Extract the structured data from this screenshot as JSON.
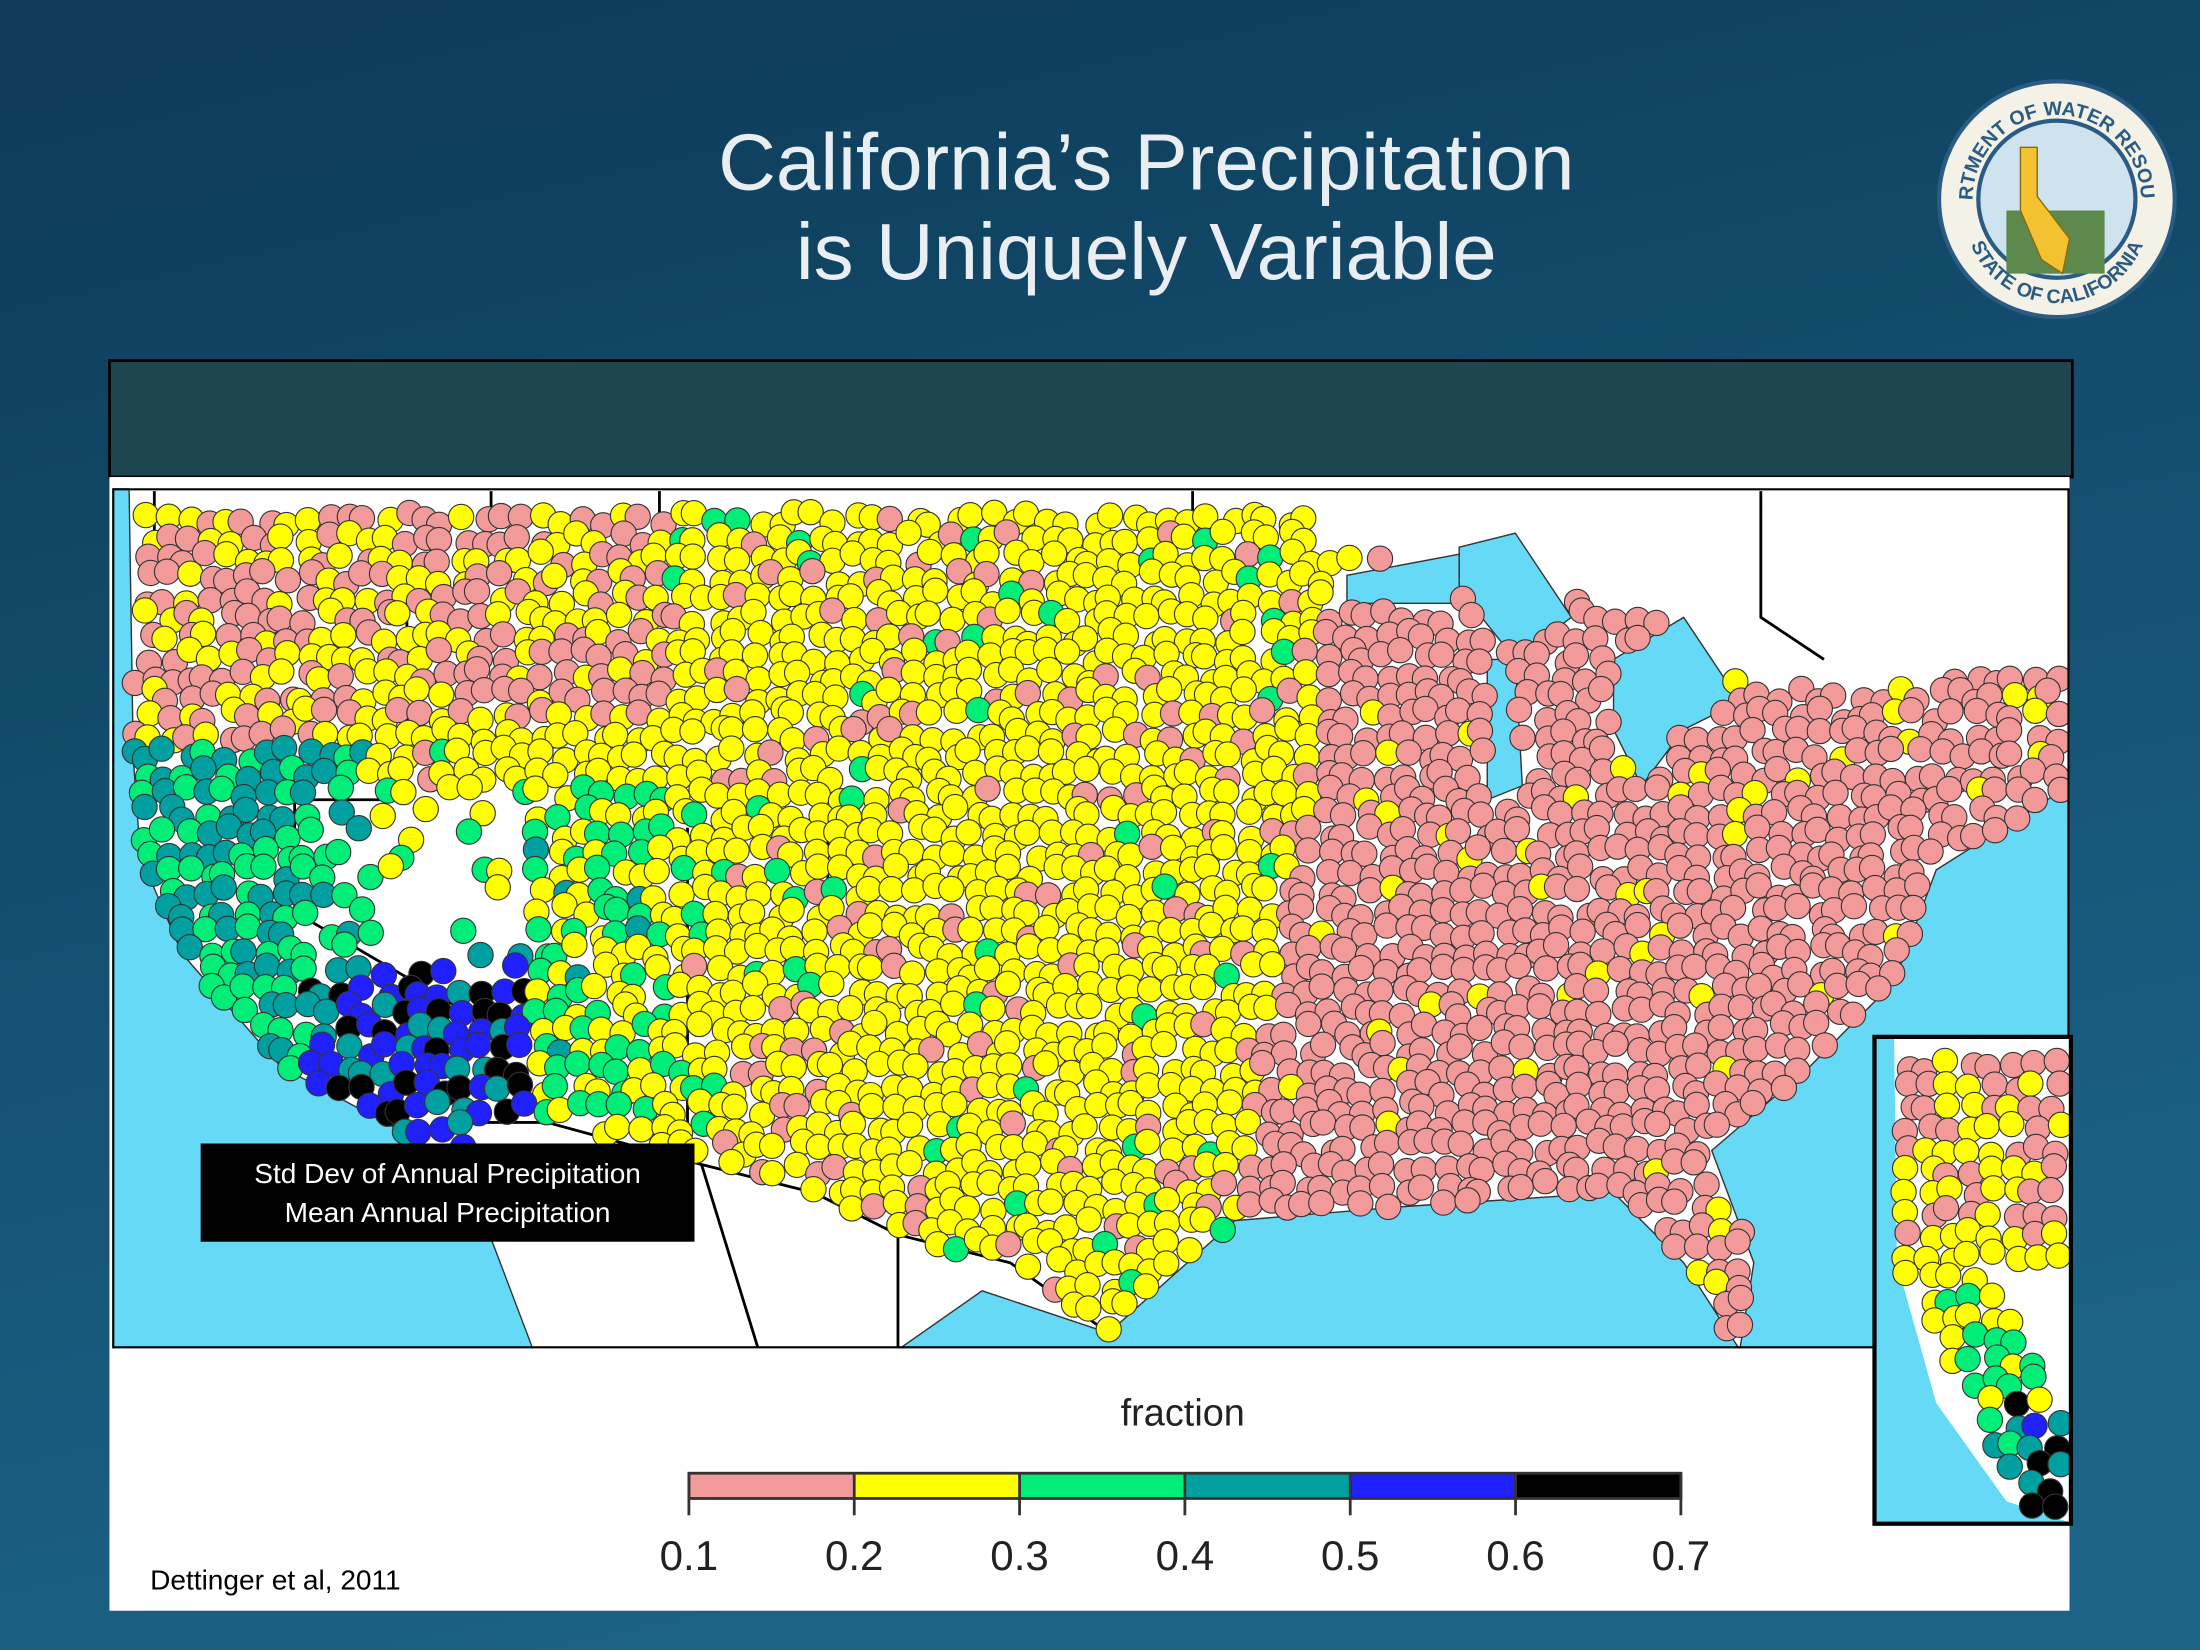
{
  "header": {
    "title_lines": [
      "California’s Precipitation",
      "is Uniquely Variable"
    ],
    "seal_top": "DEPARTMENT OF WATER RESOURCES",
    "seal_bottom": "STATE OF CALIFORNIA"
  },
  "map": {
    "label_lines": [
      "Std Dev of Annual Precipitation",
      "Mean Annual Precipitation"
    ],
    "colorbar": {
      "title": "fraction",
      "ticks": [
        0.1,
        0.2,
        0.3,
        0.4,
        0.5,
        0.6,
        0.7
      ],
      "colors": [
        "#f29a9a",
        "#ffff00",
        "#00ee77",
        "#00a0a0",
        "#2020ff",
        "#000000"
      ]
    }
  },
  "citation": "Dettinger et al, 2011"
}
